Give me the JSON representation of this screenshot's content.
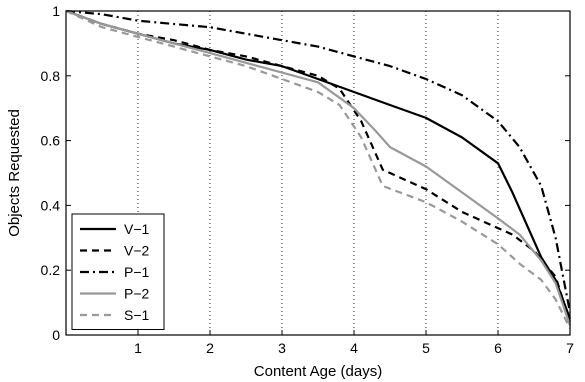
{
  "chart_data": {
    "type": "line",
    "xlabel": "Content Age (days)",
    "ylabel": "Objects Requested",
    "xlim": [
      0,
      7
    ],
    "ylim": [
      0,
      1
    ],
    "x_ticks": [
      "1",
      "2",
      "3",
      "4",
      "5",
      "6",
      "7"
    ],
    "y_ticks": [
      "0",
      "0.2",
      "0.4",
      "0.6",
      "0.8",
      "1"
    ],
    "grid": "vertical dotted",
    "legend_position": "bottom-left",
    "series": [
      {
        "name": "V−1",
        "color": "#000000",
        "dash": "solid",
        "x": [
          0,
          0.5,
          1,
          1.5,
          2,
          2.5,
          3,
          3.5,
          4,
          4.5,
          5,
          5.5,
          6,
          6.2,
          6.4,
          6.6,
          6.8,
          7
        ],
        "y": [
          1,
          0.96,
          0.93,
          0.9,
          0.88,
          0.85,
          0.83,
          0.79,
          0.75,
          0.71,
          0.67,
          0.61,
          0.53,
          0.44,
          0.34,
          0.24,
          0.17,
          0.05
        ]
      },
      {
        "name": "V−2",
        "color": "#000000",
        "dash": "dashed",
        "x": [
          0,
          0.5,
          1,
          1.5,
          2,
          2.5,
          3,
          3.5,
          3.8,
          4.1,
          4.4,
          5,
          5.5,
          6,
          6.2,
          6.5,
          6.8,
          7
        ],
        "y": [
          1,
          0.96,
          0.93,
          0.91,
          0.88,
          0.86,
          0.83,
          0.8,
          0.76,
          0.66,
          0.51,
          0.45,
          0.38,
          0.33,
          0.31,
          0.26,
          0.18,
          0.04
        ]
      },
      {
        "name": "P−1",
        "color": "#000000",
        "dash": "dashdot",
        "x": [
          0,
          0.5,
          1,
          1.5,
          2,
          2.5,
          3,
          3.5,
          4,
          4.5,
          5,
          5.5,
          6,
          6.3,
          6.6,
          6.8,
          7
        ],
        "y": [
          1,
          0.99,
          0.97,
          0.96,
          0.95,
          0.93,
          0.91,
          0.89,
          0.86,
          0.83,
          0.79,
          0.74,
          0.66,
          0.58,
          0.46,
          0.3,
          0.07
        ]
      },
      {
        "name": "P−2",
        "color": "#999999",
        "dash": "solid",
        "x": [
          0,
          0.5,
          1,
          1.5,
          2,
          2.5,
          3,
          3.5,
          4,
          4.3,
          4.5,
          5,
          5.5,
          6,
          6.3,
          6.6,
          6.8,
          7
        ],
        "y": [
          1,
          0.96,
          0.93,
          0.9,
          0.87,
          0.84,
          0.81,
          0.78,
          0.7,
          0.63,
          0.58,
          0.52,
          0.44,
          0.36,
          0.31,
          0.23,
          0.16,
          0.03
        ]
      },
      {
        "name": "S−1",
        "color": "#999999",
        "dash": "dashed",
        "x": [
          0,
          0.5,
          1,
          1.5,
          2,
          2.5,
          3,
          3.5,
          3.8,
          4.1,
          4.4,
          5,
          5.5,
          6,
          6.3,
          6.6,
          6.8,
          7
        ],
        "y": [
          1,
          0.95,
          0.92,
          0.89,
          0.86,
          0.83,
          0.79,
          0.75,
          0.71,
          0.61,
          0.46,
          0.41,
          0.35,
          0.28,
          0.22,
          0.17,
          0.11,
          0.02
        ]
      }
    ]
  }
}
